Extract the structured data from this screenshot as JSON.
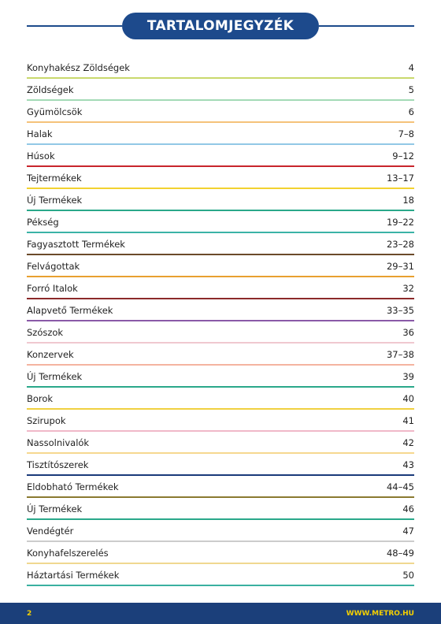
{
  "header": {
    "title": "TARTALOMJEGYZÉK"
  },
  "entries": [
    {
      "label": "Konyhakész Zöldségek",
      "page": "4"
    },
    {
      "label": "Zöldségek",
      "page": "5"
    },
    {
      "label": "Gyümölcsök",
      "page": "6"
    },
    {
      "label": "Halak",
      "page": "7–8"
    },
    {
      "label": "Húsok",
      "page": "9–12"
    },
    {
      "label": "Tejtermékek",
      "page": "13–17"
    },
    {
      "label": "Új Termékek",
      "page": "18"
    },
    {
      "label": "Pékség",
      "page": "19–22"
    },
    {
      "label": "Fagyasztott Termékek",
      "page": "23–28"
    },
    {
      "label": "Felvágottak",
      "page": "29–31"
    },
    {
      "label": "Forró Italok",
      "page": "32"
    },
    {
      "label": "Alapvető Termékek",
      "page": "33–35"
    },
    {
      "label": "Szószok",
      "page": "36"
    },
    {
      "label": "Konzervek",
      "page": "37–38"
    },
    {
      "label": "Új Termékek",
      "page": "39"
    },
    {
      "label": "Borok",
      "page": "40"
    },
    {
      "label": "Szirupok",
      "page": "41"
    },
    {
      "label": "Nassolnivalók",
      "page": "42"
    },
    {
      "label": "Tisztítószerek",
      "page": "43"
    },
    {
      "label": "Eldobható Termékek",
      "page": "44–45"
    },
    {
      "label": "Új Termékek",
      "page": "46"
    },
    {
      "label": "Vendégtér",
      "page": "47"
    },
    {
      "label": "Konyhafelszerelés",
      "page": "48–49"
    },
    {
      "label": "Háztartási Termékek",
      "page": "50"
    }
  ],
  "footer": {
    "page_number": "2",
    "url": "WWW.METRO.HU"
  }
}
